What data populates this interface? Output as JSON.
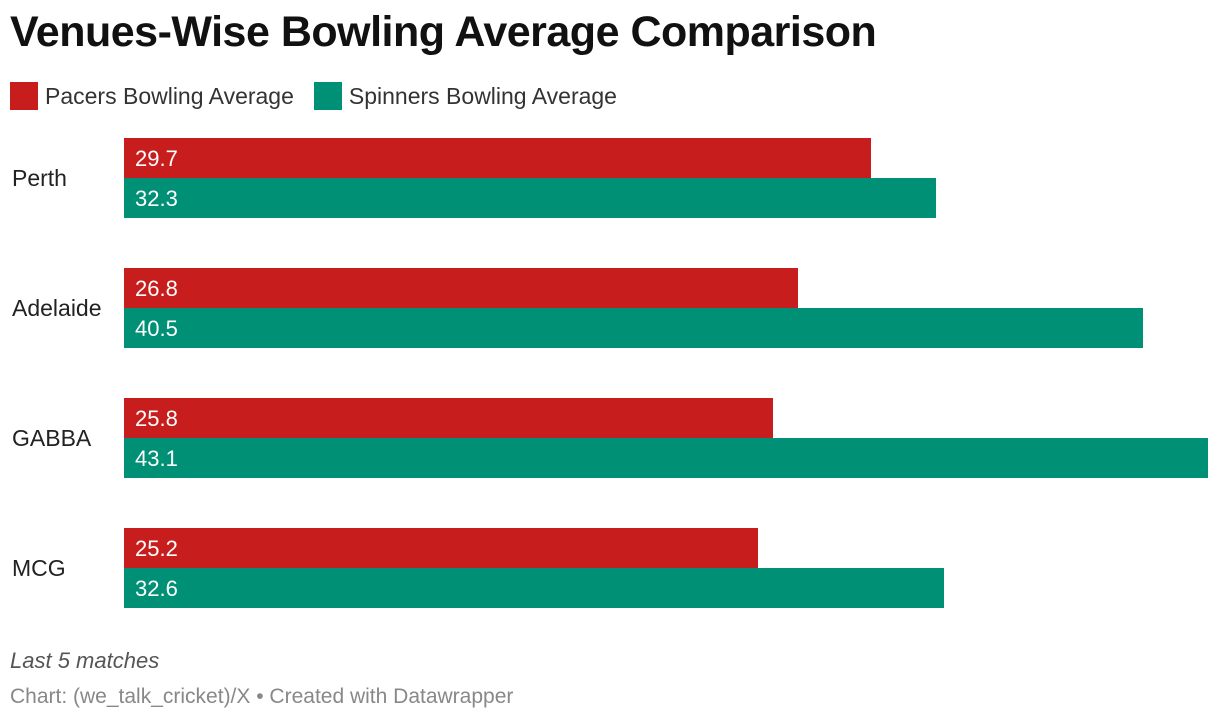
{
  "colors": {
    "pacers": "#c71e1d",
    "spinners": "#009076"
  },
  "chart_data": {
    "type": "bar",
    "orientation": "horizontal",
    "title": "Venues-Wise Bowling Average Comparison",
    "categories": [
      "Perth",
      "Adelaide",
      "GABBA",
      "MCG"
    ],
    "series": [
      {
        "name": "Pacers Bowling Average",
        "values": [
          29.7,
          26.8,
          25.8,
          25.2
        ]
      },
      {
        "name": "Spinners Bowling Average",
        "values": [
          32.3,
          40.5,
          43.1,
          32.6
        ]
      }
    ],
    "value_labels": [
      [
        "29.7",
        "26.8",
        "25.8",
        "25.2"
      ],
      [
        "32.3",
        "40.5",
        "43.1",
        "32.6"
      ]
    ],
    "xlim": [
      0,
      43.1
    ],
    "legend_position": "top-left",
    "grid": false,
    "xlabel": "",
    "ylabel": ""
  },
  "notes": "Last 5 matches",
  "source": "Chart: (we_talk_cricket)/X • Created with Datawrapper"
}
